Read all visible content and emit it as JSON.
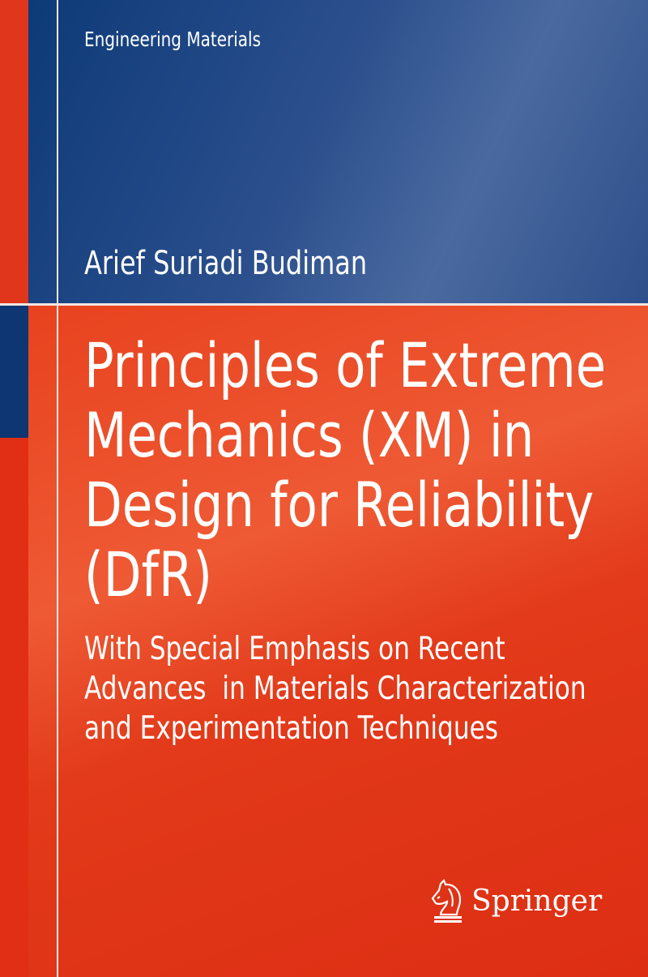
{
  "cover": {
    "series": "Engineering Materials",
    "author": "Arief Suriadi Budiman",
    "title_lines": [
      "Principles of Extreme",
      "Mechanics (XM) in",
      "Design for Reliability",
      "(DfR)"
    ],
    "subtitle_lines": [
      "With Special Emphasis on Recent",
      "Advances  in Materials Characterization",
      "and Experimentation Techniques"
    ],
    "publisher": "Springer",
    "publisher_icon": "knight-chess-horse-icon",
    "colors": {
      "red": "#e02f14",
      "blue": "#0e3672",
      "rule": "#f3e6e2"
    }
  }
}
